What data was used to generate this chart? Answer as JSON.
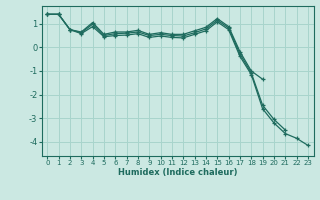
{
  "xlabel": "Humidex (Indice chaleur)",
  "bg_color": "#cbe8e2",
  "line_color": "#1e6b5e",
  "grid_color": "#a8d4cc",
  "xlim": [
    -0.5,
    23.5
  ],
  "ylim": [
    -4.6,
    1.75
  ],
  "yticks": [
    1,
    0,
    -1,
    -2,
    -3,
    -4
  ],
  "xticks": [
    0,
    1,
    2,
    3,
    4,
    5,
    6,
    7,
    8,
    9,
    10,
    11,
    12,
    13,
    14,
    15,
    16,
    17,
    18,
    19,
    20,
    21,
    22,
    23
  ],
  "series": [
    {
      "x": [
        0,
        1,
        2,
        3,
        4,
        5,
        6,
        7,
        8,
        9,
        10,
        11,
        12,
        13,
        14,
        15,
        16,
        17,
        18,
        19
      ],
      "y": [
        1.4,
        1.4,
        0.75,
        0.65,
        1.05,
        0.55,
        0.65,
        0.65,
        0.72,
        0.55,
        0.62,
        0.55,
        0.55,
        0.7,
        0.85,
        1.22,
        0.88,
        -0.18,
        -1.0,
        -1.35
      ]
    },
    {
      "x": [
        0,
        1,
        2,
        3,
        4,
        5,
        6,
        7,
        8,
        9,
        10,
        11,
        12,
        13,
        14,
        15,
        16,
        17,
        18,
        19,
        20,
        21
      ],
      "y": [
        1.4,
        1.4,
        0.75,
        0.62,
        0.98,
        0.5,
        0.58,
        0.6,
        0.65,
        0.5,
        0.55,
        0.5,
        0.48,
        0.62,
        0.78,
        1.15,
        0.82,
        -0.28,
        -1.08,
        -2.45,
        -3.05,
        -3.5
      ]
    },
    {
      "x": [
        0,
        1,
        2,
        3,
        4,
        5,
        6,
        7,
        8,
        9,
        10,
        11,
        12,
        13,
        14,
        15,
        16,
        17,
        18,
        19,
        20,
        21,
        22,
        23
      ],
      "y": [
        1.4,
        1.4,
        0.75,
        0.58,
        0.88,
        0.45,
        0.5,
        0.52,
        0.58,
        0.42,
        0.48,
        0.42,
        0.4,
        0.55,
        0.7,
        1.08,
        0.75,
        -0.38,
        -1.15,
        -2.6,
        -3.2,
        -3.65,
        -3.85,
        -4.15
      ]
    }
  ]
}
